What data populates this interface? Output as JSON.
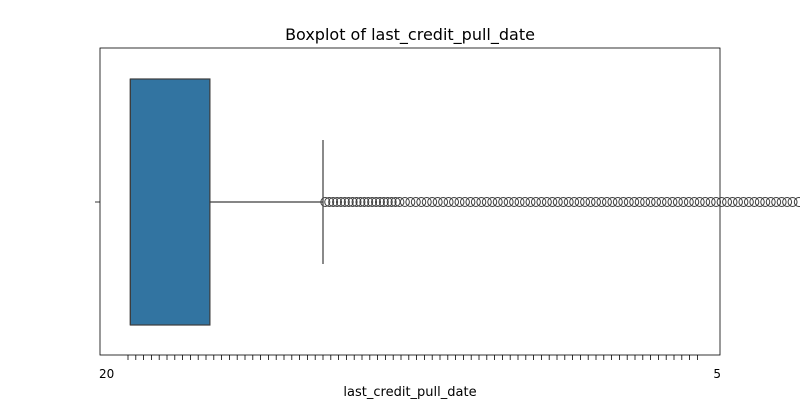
{
  "chart_data": {
    "type": "boxplot",
    "title": "Boxplot of last_credit_pull_date",
    "xlabel": "last_credit_pull_date",
    "ylabel": "",
    "orientation": "horizontal",
    "grid": false,
    "legend": "none",
    "box_color": "#3274a1",
    "edge_color": "#3d3d3d",
    "x_tick_count": 74,
    "x_tick_labels": [
      "20",
      "5"
    ],
    "box": {
      "q1": 0.3,
      "median": 0.3,
      "q3": 10.5,
      "whisker_low": 0.3,
      "whisker_high": 25
    },
    "outliers": [
      25.3,
      25.8,
      26.3,
      26.8,
      27.3,
      27.8,
      28.3,
      28.8,
      29.3,
      29.8,
      30.3,
      30.8,
      31.3,
      31.8,
      32.3,
      32.8,
      33.3,
      33.8,
      34.3,
      34.8,
      35.5,
      36.2,
      36.9,
      37.6,
      38.3,
      39.0,
      39.7,
      40.4,
      41.1,
      41.8,
      42.5,
      43.2,
      43.9,
      44.6,
      45.3,
      46.0,
      46.7,
      47.4,
      48.1,
      48.8,
      49.5,
      50.2,
      50.9,
      51.6,
      52.3,
      53.0,
      53.7,
      54.4,
      55.1,
      55.8,
      56.5,
      57.2,
      57.9,
      58.6,
      59.3,
      60.0,
      60.7,
      61.4,
      62.1,
      62.8,
      63.5,
      64.2,
      64.9,
      65.6,
      66.3,
      67.0,
      67.7,
      68.4,
      69.1,
      69.8,
      70.5,
      71.2,
      71.9,
      72.6,
      73.3,
      74.0,
      74.7,
      75.4,
      76.1,
      76.8,
      77.5,
      78.2,
      78.9,
      79.6,
      80.3,
      81.0,
      81.7,
      82.4,
      83.1,
      83.8,
      84.5,
      85.2,
      86.0,
      86.8,
      87.6,
      88.4,
      89.2,
      90.0,
      90.8,
      91.6,
      92.4,
      93.2
    ]
  }
}
